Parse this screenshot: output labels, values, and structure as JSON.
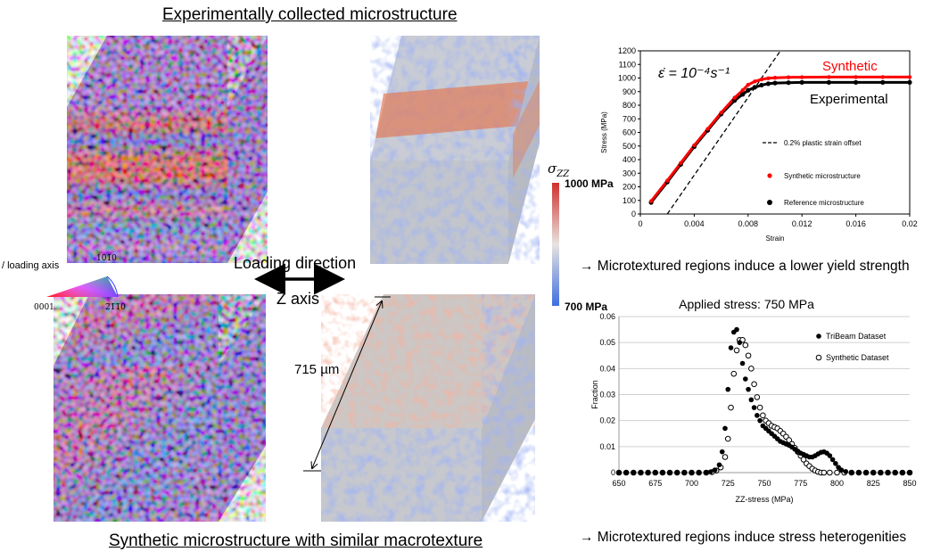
{
  "headings": {
    "top": "Experimentally collected microstructure",
    "bottom": "Synthetic microstructure with similar macrotexture"
  },
  "annotations": {
    "loading_direction": "Loading direction",
    "z_axis": "Z axis",
    "scale": "715 µm",
    "note_yield": "→ Microtextured regions induce a lower yield strength",
    "note_stress": "→ Microtextured regions induce stress heterogenities"
  },
  "ipf_legend": {
    "title": "/ loading axis",
    "corner_0001": "0001",
    "corner_10m10": "10̅1̅0",
    "corner_2m1m10": "2̅1̅1̅0"
  },
  "colorbar": {
    "symbol": "σZZ",
    "max_label": "1000 MPa",
    "min_label": "700 MPa",
    "color_max": "#d0302c",
    "color_mid": "#e8e4e0",
    "color_min": "#3f6fe0"
  },
  "colors": {
    "synthetic": "#ff0000",
    "experimental": "#000000"
  },
  "chart_data": [
    {
      "type": "line",
      "equation": "ε̇ = 10⁻⁴s⁻¹",
      "xlabel": "Strain",
      "ylabel": "Stress (MPa)",
      "xlim": [
        0,
        0.02
      ],
      "ylim": [
        0,
        1200
      ],
      "xticks": [
        "0",
        "0.004",
        "0.008",
        "0.012",
        "0.016",
        "0.02"
      ],
      "yticks": [
        "0",
        "100",
        "200",
        "300",
        "400",
        "500",
        "600",
        "700",
        "800",
        "900",
        "1000",
        "1100",
        "1200"
      ],
      "grid": false,
      "legend_position": "right",
      "curve_labels": {
        "synthetic": "Synthetic",
        "experimental": "Experimental"
      },
      "series": [
        {
          "name": "0.2% plastic strain offset",
          "style": "dashed",
          "x": [
            0.002,
            0.0104
          ],
          "y": [
            0,
            1200
          ]
        },
        {
          "name": "Synthetic microstructure",
          "style": "red-dots",
          "x": [
            0.0008,
            0.002,
            0.003,
            0.004,
            0.005,
            0.006,
            0.007,
            0.0076,
            0.008,
            0.0085,
            0.009,
            0.0095,
            0.01,
            0.011,
            0.012,
            0.014,
            0.016,
            0.018,
            0.02
          ],
          "y": [
            95,
            245,
            375,
            505,
            625,
            745,
            855,
            910,
            950,
            975,
            990,
            998,
            1002,
            1005,
            1006,
            1007,
            1007,
            1007,
            1007
          ]
        },
        {
          "name": "Reference microstructure",
          "style": "black-dots",
          "x": [
            0.0008,
            0.002,
            0.003,
            0.004,
            0.005,
            0.006,
            0.007,
            0.0076,
            0.008,
            0.0085,
            0.009,
            0.0095,
            0.01,
            0.011,
            0.012,
            0.014,
            0.016,
            0.018,
            0.02
          ],
          "y": [
            85,
            235,
            365,
            495,
            615,
            735,
            835,
            880,
            910,
            932,
            948,
            958,
            963,
            966,
            968,
            968,
            968,
            968,
            968
          ]
        }
      ]
    },
    {
      "type": "line",
      "title": "Applied stress: 750 MPa",
      "xlabel": "ZZ-stress (MPa)",
      "ylabel": "Fraction",
      "xlim": [
        650,
        850
      ],
      "ylim": [
        0,
        0.06
      ],
      "xticks": [
        "650",
        "675",
        "700",
        "725",
        "750",
        "775",
        "800",
        "825",
        "850"
      ],
      "yticks": [
        "0",
        "0.01",
        "0.02",
        "0.03",
        "0.04",
        "0.05",
        "0.06"
      ],
      "grid": true,
      "legend_position": "top-right",
      "series": [
        {
          "name": "TriBeam Dataset",
          "marker": "filled",
          "x": [
            650,
            655,
            660,
            665,
            670,
            675,
            680,
            685,
            690,
            695,
            700,
            705,
            710,
            713,
            716,
            719,
            721,
            723,
            725,
            727,
            729,
            731,
            733,
            735,
            737,
            739,
            741,
            743,
            745,
            747,
            749,
            751,
            753,
            755,
            757,
            759,
            761,
            763,
            765,
            767,
            769,
            771,
            773,
            775,
            777,
            779,
            781,
            783,
            785,
            787,
            789,
            791,
            793,
            795,
            797,
            799,
            801,
            803,
            806,
            810,
            815,
            820,
            825,
            830,
            835,
            840,
            845,
            850
          ],
          "y": [
            0,
            0,
            0,
            0,
            0,
            0,
            0,
            0,
            0,
            0,
            0,
            0,
            0,
            0.0003,
            0.001,
            0.003,
            0.008,
            0.017,
            0.032,
            0.048,
            0.054,
            0.055,
            0.05,
            0.042,
            0.036,
            0.032,
            0.028,
            0.025,
            0.022,
            0.02,
            0.018,
            0.017,
            0.016,
            0.015,
            0.014,
            0.013,
            0.012,
            0.0115,
            0.011,
            0.0105,
            0.0098,
            0.009,
            0.0082,
            0.0075,
            0.007,
            0.0065,
            0.006,
            0.006,
            0.0065,
            0.0072,
            0.0078,
            0.008,
            0.0075,
            0.0065,
            0.005,
            0.0035,
            0.002,
            0.001,
            0.0004,
            0,
            0,
            0,
            0,
            0,
            0,
            0,
            0,
            0
          ]
        },
        {
          "name": "Synthetic Dataset",
          "marker": "open",
          "x": [
            650,
            655,
            660,
            665,
            670,
            675,
            680,
            685,
            690,
            695,
            700,
            705,
            710,
            714,
            717,
            720,
            723,
            725,
            727,
            729,
            731,
            733,
            735,
            737,
            739,
            741,
            743,
            745,
            747,
            749,
            751,
            753,
            755,
            757,
            759,
            761,
            763,
            765,
            767,
            769,
            771,
            773,
            775,
            777,
            779,
            781,
            783,
            785,
            787,
            789,
            791,
            795,
            800,
            805,
            810,
            815,
            820,
            825,
            830,
            835,
            840,
            845,
            850
          ],
          "y": [
            0,
            0,
            0,
            0,
            0,
            0,
            0,
            0,
            0,
            0,
            0,
            0,
            0,
            0.0002,
            0.0008,
            0.002,
            0.006,
            0.013,
            0.025,
            0.038,
            0.047,
            0.051,
            0.051,
            0.049,
            0.045,
            0.04,
            0.034,
            0.029,
            0.025,
            0.022,
            0.02,
            0.019,
            0.018,
            0.0175,
            0.017,
            0.016,
            0.015,
            0.0138,
            0.0125,
            0.011,
            0.0095,
            0.008,
            0.0065,
            0.005,
            0.0035,
            0.0025,
            0.0015,
            0.0008,
            0.0003,
            0,
            0,
            0,
            0,
            0,
            0,
            0,
            0,
            0,
            0,
            0,
            0,
            0,
            0
          ]
        }
      ]
    }
  ]
}
